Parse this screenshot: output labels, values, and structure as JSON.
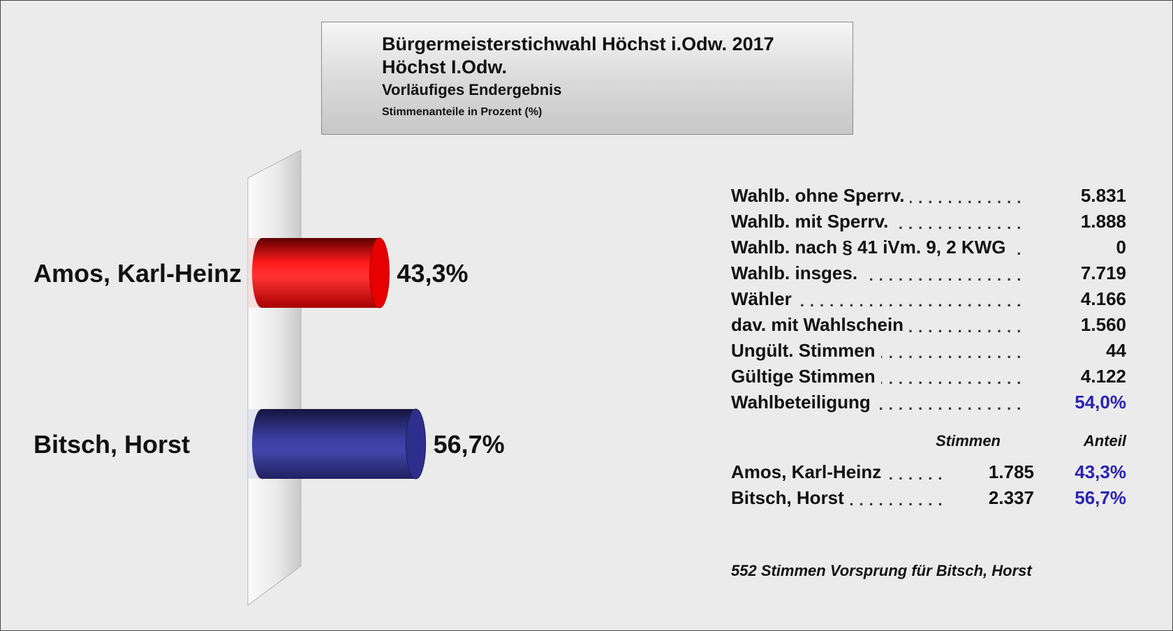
{
  "header": {
    "title": "Bürgermeisterstichwahl Höchst i.Odw. 2017",
    "subtitle": "Höchst I.Odw.",
    "status": "Vorläufiges Endergebnis",
    "unit": "Stimmenanteile in Prozent (%)"
  },
  "chart_data": {
    "type": "bar",
    "orientation": "horizontal",
    "title": "Bürgermeisterstichwahl Höchst i.Odw. 2017",
    "categories": [
      "Amos, Karl-Heinz",
      "Bitsch, Horst"
    ],
    "values": [
      43.3,
      56.7
    ],
    "value_labels": [
      "43,3%",
      "56,7%"
    ],
    "colors": [
      "#e60000",
      "#2e2f8c"
    ],
    "unit": "%",
    "xlim": [
      0,
      100
    ],
    "grid": false,
    "legend": "none"
  },
  "stats": [
    {
      "label": "Wahlb. ohne Sperrv.",
      "value": "5.831"
    },
    {
      "label": "Wahlb. mit Sperrv.",
      "value": "1.888"
    },
    {
      "label": "Wahlb. nach § 41 iVm. 9, 2 KWG",
      "value": "0"
    },
    {
      "label": "Wahlb. insges.",
      "value": "7.719"
    },
    {
      "label": "Wähler",
      "value": "4.166"
    },
    {
      "label": "dav. mit Wahlschein",
      "value": "1.560"
    },
    {
      "label": "Ungült. Stimmen",
      "value": "44"
    },
    {
      "label": "Gültige Stimmen",
      "value": "4.122"
    },
    {
      "label": "Wahlbeteiligung",
      "value": "54,0%"
    }
  ],
  "table": {
    "col_votes": "Stimmen",
    "col_share": "Anteil",
    "rows": [
      {
        "name": "Amos, Karl-Heinz",
        "votes": "1.785",
        "share": "43,3%"
      },
      {
        "name": "Bitsch, Horst",
        "votes": "2.337",
        "share": "56,7%"
      }
    ]
  },
  "lead_note": "552 Stimmen Vorsprung für Bitsch, Horst",
  "colors": {
    "accent_blue": "#2a22b2",
    "background": "#ebebeb"
  }
}
